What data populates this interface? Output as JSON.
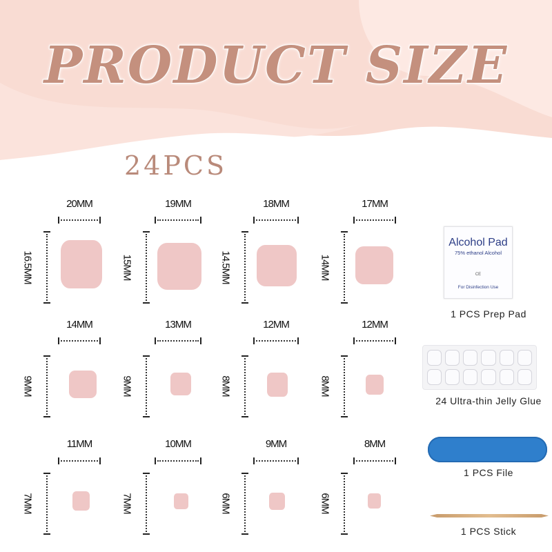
{
  "title": "PRODUCT SIZE",
  "count": "24PCS",
  "nails": [
    {
      "width": "20MM",
      "length": "16.5MM"
    },
    {
      "width": "19MM",
      "length": "15MM"
    },
    {
      "width": "18MM",
      "length": "14.5MM"
    },
    {
      "width": "17MM",
      "length": "14MM"
    },
    {
      "width": "14MM",
      "length": "9MM"
    },
    {
      "width": "13MM",
      "length": "9MM"
    },
    {
      "width": "12MM",
      "length": "8MM"
    },
    {
      "width": "12MM",
      "length": "8MM"
    },
    {
      "width": "11MM",
      "length": "7MM"
    },
    {
      "width": "10MM",
      "length": "7MM"
    },
    {
      "width": "9MM",
      "length": "6MM"
    },
    {
      "width": "8MM",
      "length": "6MM"
    }
  ],
  "accessories": {
    "pad": {
      "label": "1 PCS Prep Pad",
      "name": "Alcohol Pad",
      "sub": "75% ethanol Alcohol",
      "mark": "CE",
      "use": "For Disinfection Use"
    },
    "glue": {
      "label": "24 Ultra-thin Jelly Glue"
    },
    "file": {
      "label": "1 PCS File",
      "color": "#2f7fcc"
    },
    "stick": {
      "label": "1 PCS Stick"
    }
  },
  "colors": {
    "title": "#c4907e",
    "nail": "#efc7c6",
    "background": "#f9dcd3"
  }
}
